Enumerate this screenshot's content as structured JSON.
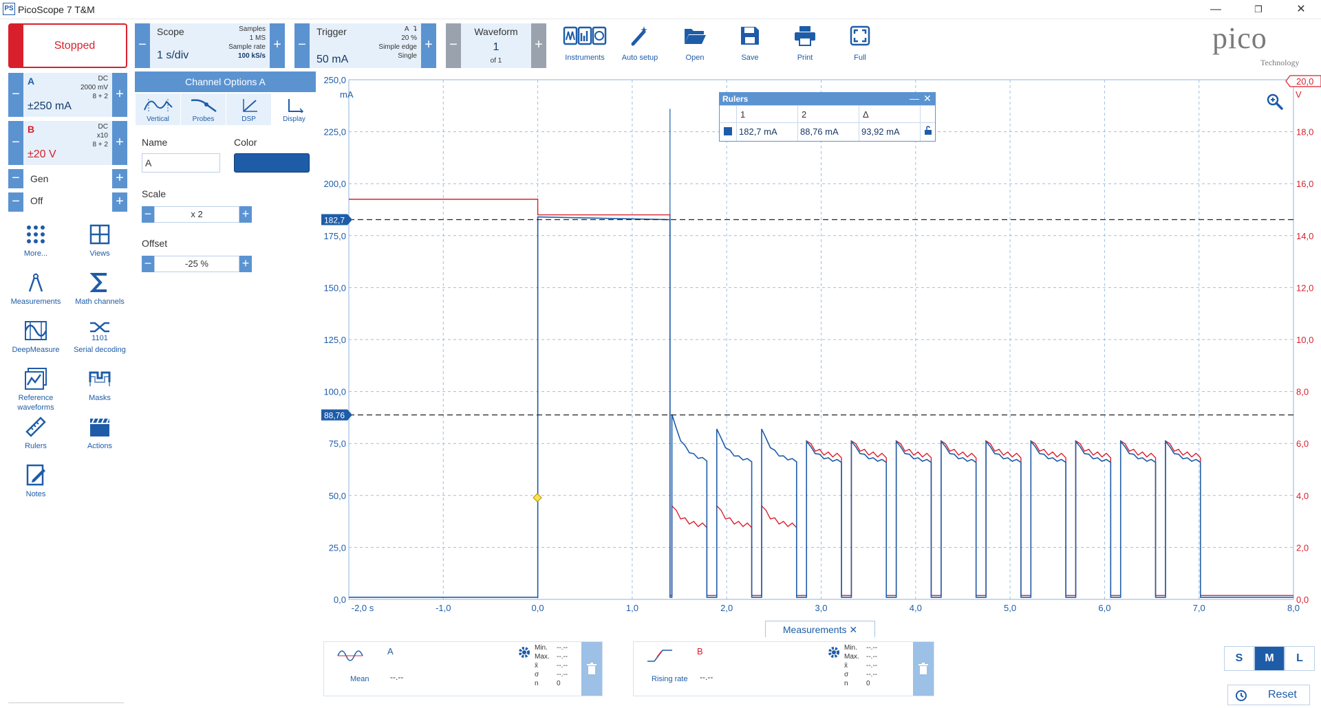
{
  "window": {
    "title": "PicoScope 7 T&M",
    "icon_text": "PS"
  },
  "toolbar": {
    "run_state": "Stopped",
    "scope": {
      "label": "Scope",
      "timebase": "1 s/div",
      "samples_label": "Samples",
      "samples": "1 MS",
      "sample_rate_label": "Sample rate",
      "sample_rate": "100 kS/s"
    },
    "trigger": {
      "label": "Trigger",
      "level": "50 mA",
      "channel": "A",
      "edge_glyph": "⮧",
      "pre_trigger": "20 %",
      "type": "Simple edge",
      "mode": "Single"
    },
    "waveform": {
      "label": "Waveform",
      "current": "1",
      "of": "of 1"
    },
    "buttons": [
      "Instruments",
      "Auto setup",
      "Open",
      "Save",
      "Print",
      "Full"
    ],
    "logo": {
      "brand": "pico",
      "sub": "Technology"
    }
  },
  "channels": {
    "a": {
      "name": "A",
      "coupling": "DC",
      "probe": "2000 mV",
      "bits": "8 + 2",
      "range": "±250 mA",
      "color": "#1e5ca8"
    },
    "b": {
      "name": "B",
      "coupling": "DC",
      "probe": "x10",
      "bits": "8 + 2",
      "range": "±20 V",
      "color": "#d8202c"
    },
    "gen": {
      "label": "Gen"
    },
    "off": {
      "label": "Off"
    }
  },
  "left_tools": [
    "More...",
    "Views",
    "Measurements",
    "Math channels",
    "DeepMeasure",
    "Serial decoding",
    "Reference waveforms",
    "Masks",
    "Rulers",
    "Actions",
    "Notes"
  ],
  "channel_options": {
    "title": "Channel Options  A",
    "tabs": [
      "Vertical",
      "Probes",
      "DSP",
      "Display"
    ],
    "name_label": "Name",
    "name_value": "A",
    "color_label": "Color",
    "color_value": "#1e5ca8",
    "scale_label": "Scale",
    "scale_value": "x 2",
    "offset_label": "Offset",
    "offset_value": "-25 %"
  },
  "plot": {
    "left_unit": "mA",
    "right_unit": "V",
    "right_top_tag": "20,0",
    "left_ticks": [
      "250,0",
      "225,0",
      "200,0",
      "175,0",
      "150,0",
      "125,0",
      "100,0",
      "75,0",
      "50,0",
      "25,0",
      "0,0"
    ],
    "right_ticks": [
      "20,0",
      "18,0",
      "16,0",
      "14,0",
      "12,0",
      "10,0",
      "8,0",
      "6,0",
      "4,0",
      "2,0",
      "0,0"
    ],
    "x_ticks": [
      "-2,0 s",
      "-1,0",
      "0,0",
      "1,0",
      "2,0",
      "3,0",
      "4,0",
      "5,0",
      "6,0",
      "7,0",
      "8,0"
    ],
    "ruler_tags": [
      "182,7",
      "88,76"
    ]
  },
  "rulers_panel": {
    "title": "Rulers",
    "headers": [
      "1",
      "2",
      "Δ"
    ],
    "values": [
      "182,7 mA",
      "88,76 mA",
      "93,92 mA"
    ]
  },
  "measurements": {
    "tab_label": "Measurements",
    "cards": [
      {
        "channel": "A",
        "name": "Mean",
        "value": "--.--",
        "stats_labels": [
          "Min.",
          "Max.",
          "x̄",
          "σ",
          "n"
        ],
        "stats_values": [
          "--.--",
          "--.--",
          "--.--",
          "--.--",
          "0"
        ]
      },
      {
        "channel": "B",
        "name": "Rising rate",
        "value": "--.--",
        "stats_labels": [
          "Min.",
          "Max.",
          "x̄",
          "σ",
          "n"
        ],
        "stats_values": [
          "--.--",
          "--.--",
          "--.--",
          "--.--",
          "0"
        ]
      }
    ]
  },
  "size_buttons": [
    "S",
    "M",
    "L"
  ],
  "reset_label": "Reset"
}
